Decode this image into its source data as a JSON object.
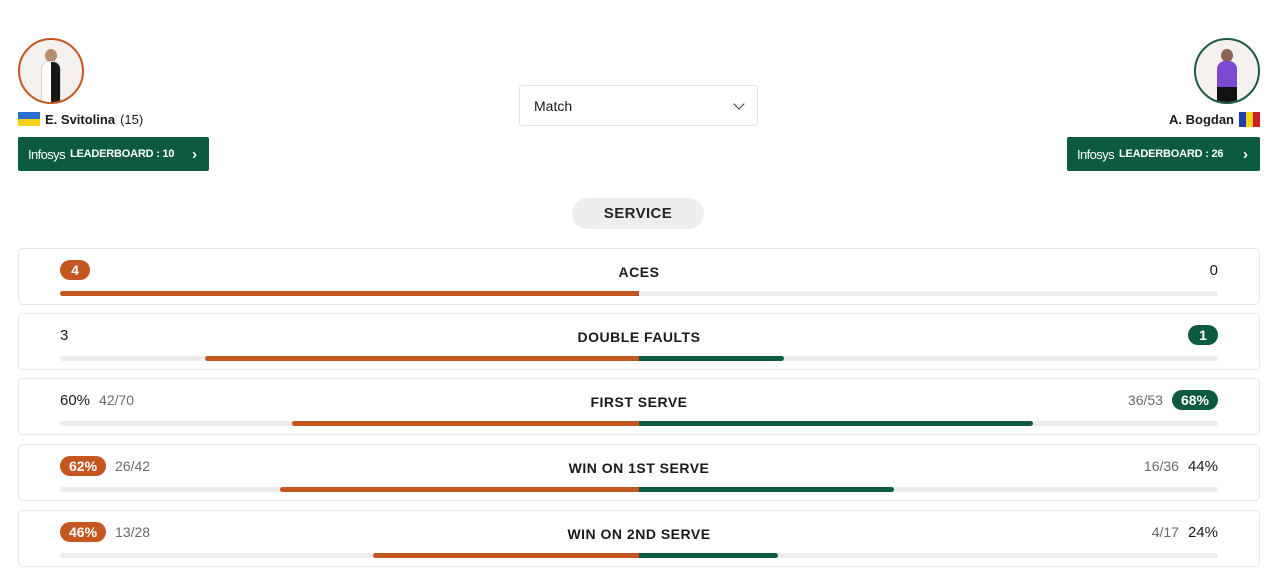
{
  "player_left": {
    "name": "E. Svitolina",
    "seed": "(15)",
    "leaderboard": {
      "brand": "Infosys",
      "label": "LEADERBOARD : 10",
      "rank": 10
    }
  },
  "player_right": {
    "name": "A. Bogdan",
    "leaderboard": {
      "brand": "Infosys",
      "label": "LEADERBOARD : 26",
      "rank": 26
    }
  },
  "period_select": {
    "value": "Match"
  },
  "section": {
    "label": "SERVICE"
  },
  "colors": {
    "left": "#c4571f",
    "right": "#0d5a43",
    "track": "#ececec"
  },
  "stats": [
    {
      "title": "ACES",
      "left": {
        "value": "4",
        "detail": "",
        "highlight": true,
        "share": 1.0
      },
      "right": {
        "value": "0",
        "detail": "",
        "highlight": false,
        "share": 0.0
      }
    },
    {
      "title": "DOUBLE FAULTS",
      "left": {
        "value": "3",
        "detail": "",
        "highlight": false,
        "share": 0.75
      },
      "right": {
        "value": "1",
        "detail": "",
        "highlight": true,
        "share": 0.25
      }
    },
    {
      "title": "FIRST SERVE",
      "left": {
        "value": "60%",
        "detail": "42/70",
        "highlight": false,
        "share": 0.6
      },
      "right": {
        "value": "68%",
        "detail": "36/53",
        "highlight": true,
        "share": 0.68
      }
    },
    {
      "title": "WIN ON 1ST SERVE",
      "left": {
        "value": "62%",
        "detail": "26/42",
        "highlight": true,
        "share": 0.62
      },
      "right": {
        "value": "44%",
        "detail": "16/36",
        "highlight": false,
        "share": 0.44
      }
    },
    {
      "title": "WIN ON 2ND SERVE",
      "left": {
        "value": "46%",
        "detail": "13/28",
        "highlight": true,
        "share": 0.46
      },
      "right": {
        "value": "24%",
        "detail": "4/17",
        "highlight": false,
        "share": 0.24
      }
    }
  ]
}
